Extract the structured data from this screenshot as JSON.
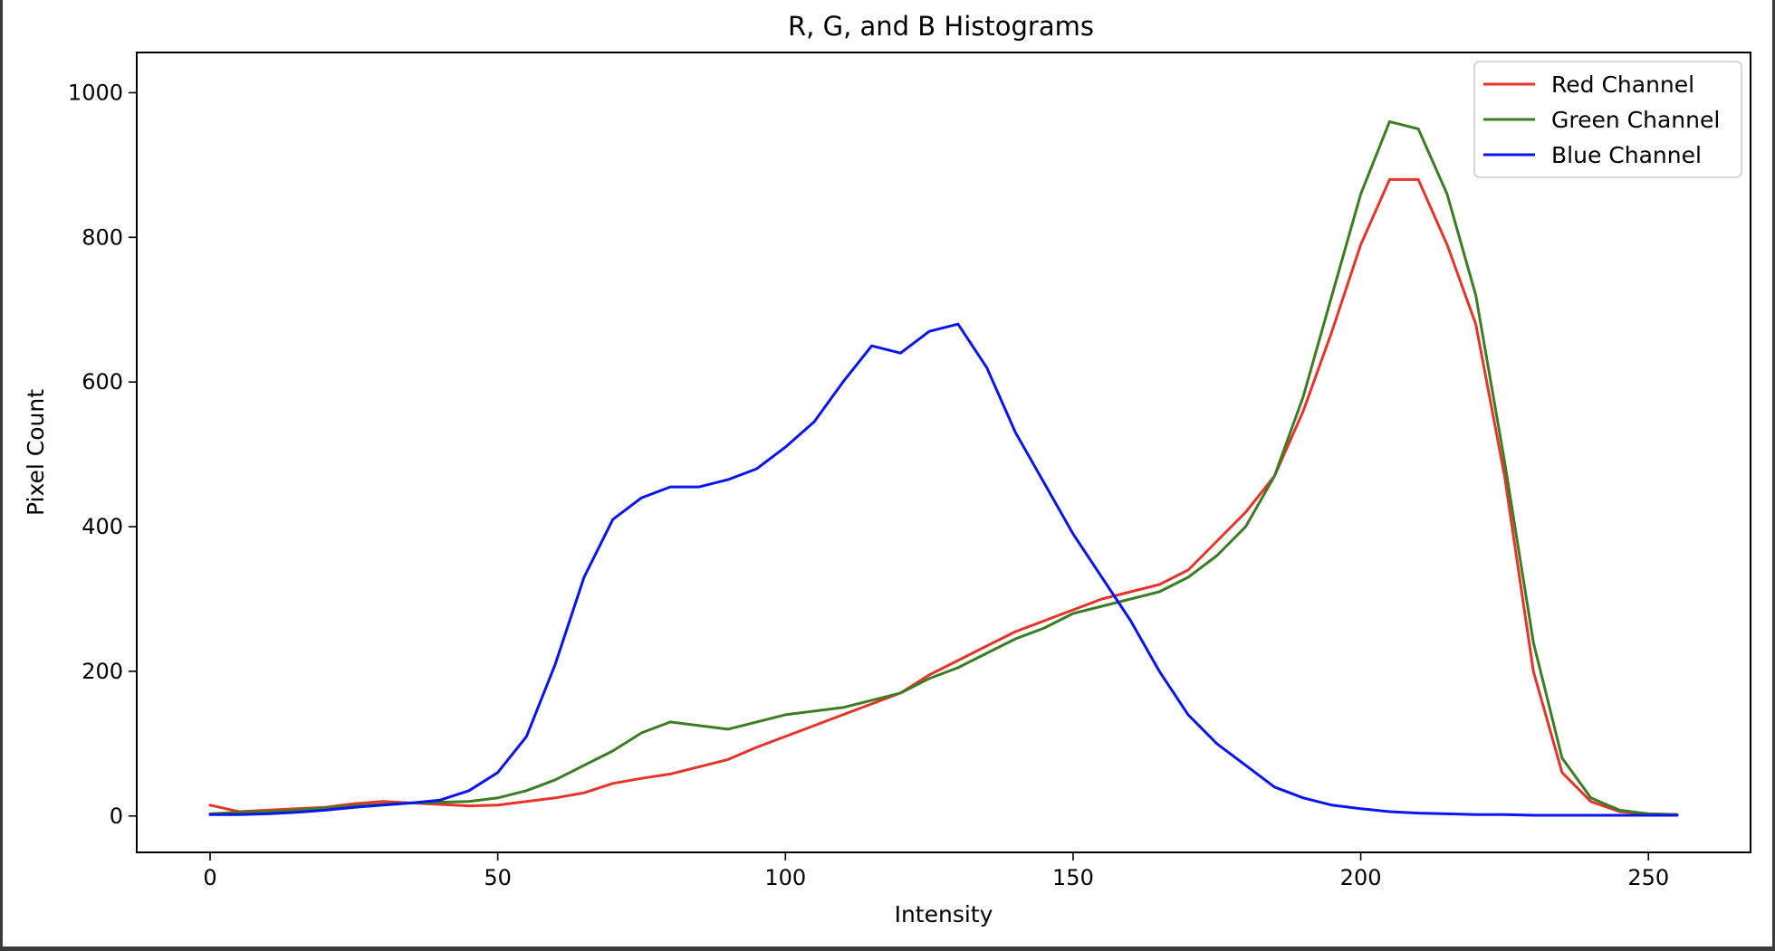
{
  "chart_data": {
    "type": "line",
    "title": "R, G, and B Histograms",
    "xlabel": "Intensity",
    "ylabel": "Pixel Count",
    "xlim": [
      -12.75,
      267.75
    ],
    "ylim": [
      -50.3,
      1055.6
    ],
    "xticks": [
      0,
      50,
      100,
      150,
      200,
      250
    ],
    "xtick_labels": [
      "0",
      "50",
      "100",
      "150",
      "200",
      "250"
    ],
    "yticks": [
      0,
      200,
      400,
      600,
      800,
      1000
    ],
    "ytick_labels": [
      "0",
      "200",
      "400",
      "600",
      "800",
      "1000"
    ],
    "grid": false,
    "legend": {
      "placement": "top-right"
    },
    "x": {
      "start": 0,
      "end": 255,
      "step": 5
    },
    "series": [
      {
        "name": "Red Channel",
        "color": "#e8332a",
        "values": [
          15,
          6,
          8,
          10,
          12,
          17,
          20,
          18,
          16,
          14,
          15,
          20,
          25,
          32,
          45,
          52,
          58,
          68,
          78,
          95,
          110,
          125,
          140,
          155,
          170,
          195,
          215,
          235,
          255,
          270,
          285,
          300,
          310,
          320,
          340,
          380,
          420,
          470,
          560,
          670,
          790,
          880,
          880,
          790,
          680,
          470,
          200,
          60,
          20,
          6,
          3,
          2
        ]
      },
      {
        "name": "Green Channel",
        "color": "#3a7d22",
        "values": [
          3,
          5,
          6,
          8,
          11,
          14,
          16,
          18,
          19,
          20,
          25,
          35,
          50,
          70,
          90,
          115,
          130,
          125,
          120,
          130,
          140,
          145,
          150,
          160,
          170,
          190,
          205,
          225,
          245,
          260,
          280,
          290,
          300,
          310,
          330,
          360,
          400,
          470,
          580,
          720,
          860,
          960,
          950,
          860,
          720,
          490,
          240,
          80,
          25,
          8,
          3,
          2
        ]
      },
      {
        "name": "Blue Channel",
        "color": "#0a14f0",
        "values": [
          2,
          2,
          3,
          5,
          8,
          12,
          15,
          18,
          22,
          35,
          60,
          110,
          210,
          330,
          410,
          440,
          455,
          455,
          465,
          480,
          510,
          545,
          600,
          650,
          640,
          670,
          680,
          620,
          530,
          460,
          390,
          330,
          270,
          200,
          140,
          100,
          70,
          40,
          25,
          15,
          10,
          6,
          4,
          3,
          2,
          2,
          1,
          1,
          1,
          1,
          1,
          1
        ]
      }
    ]
  }
}
